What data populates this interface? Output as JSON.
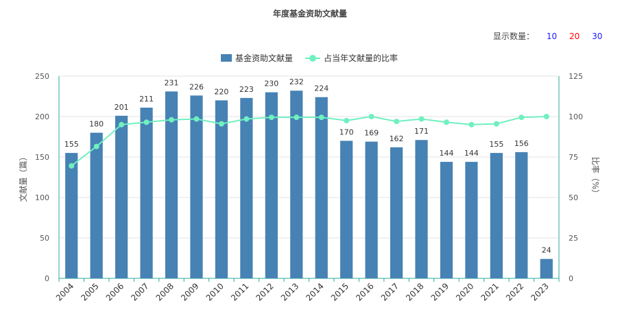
{
  "chart_data": {
    "type": "bar",
    "title": "年度基金资助文献量",
    "categories": [
      "2004",
      "2005",
      "2006",
      "2007",
      "2008",
      "2009",
      "2010",
      "2011",
      "2012",
      "2013",
      "2014",
      "2015",
      "2016",
      "2017",
      "2018",
      "2019",
      "2020",
      "2021",
      "2022",
      "2023"
    ],
    "series": [
      {
        "name": "基金资助文献量",
        "type": "bar",
        "axis": "left",
        "color": "#4682b4",
        "values": [
          155,
          180,
          201,
          211,
          231,
          226,
          220,
          223,
          230,
          232,
          224,
          170,
          169,
          162,
          171,
          144,
          144,
          155,
          156,
          24
        ]
      },
      {
        "name": "占当年文献量的比率",
        "type": "line",
        "axis": "right",
        "color": "#70f0c0",
        "values": [
          69.5,
          81.5,
          95,
          96.5,
          98,
          98.5,
          95.5,
          98.5,
          99.5,
          99.5,
          99.5,
          97.5,
          100,
          97,
          98.5,
          96.5,
          95,
          95.5,
          99.5,
          100
        ]
      }
    ],
    "ylabel": "文献量（篇）",
    "ylabel_right": "比率（%）",
    "ylim": [
      0,
      250
    ],
    "yticks": [
      "0",
      "50",
      "100",
      "150",
      "200",
      "250"
    ],
    "ylim_right": [
      0,
      125
    ],
    "yticks_right": [
      "0",
      "25",
      "50",
      "75",
      "100",
      "125"
    ],
    "data_labels": true,
    "grid": true,
    "legend_position": "top-center"
  },
  "controls": {
    "show_count_label": "显示数量：",
    "options": [
      {
        "label": "10",
        "color": "#1a1aff"
      },
      {
        "label": "20",
        "color": "#ff0000"
      },
      {
        "label": "30",
        "color": "#1a1aff"
      }
    ]
  }
}
